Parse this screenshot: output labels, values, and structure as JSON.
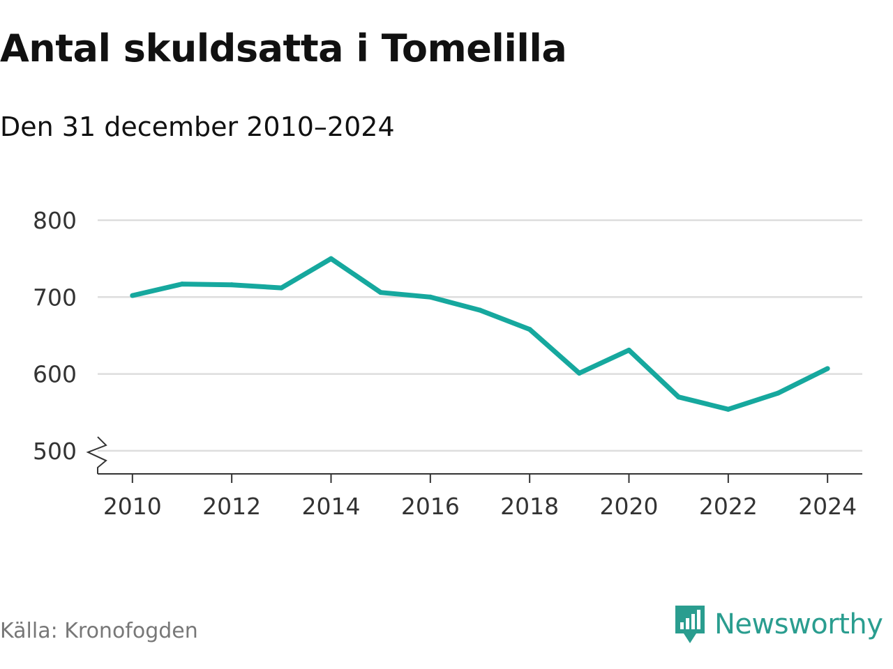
{
  "header": {
    "title": "Antal skuldsatta i Tomelilla",
    "subtitle": "Den 31 december 2010–2024"
  },
  "footer": {
    "source": "Källa: Kronofogden",
    "brand": "Newsworthy"
  },
  "colors": {
    "line": "#16a89e",
    "grid": "#dddddd",
    "axis": "#333333",
    "brand": "#2a9d8f"
  },
  "icons": [
    "newsworthy-logo-icon",
    "axis-break-icon"
  ],
  "chart_data": {
    "type": "line",
    "title": "Antal skuldsatta i Tomelilla",
    "subtitle": "Den 31 december 2010–2024",
    "xlabel": "",
    "ylabel": "",
    "x": [
      2010,
      2011,
      2012,
      2013,
      2014,
      2015,
      2016,
      2017,
      2018,
      2019,
      2020,
      2021,
      2022,
      2023,
      2024
    ],
    "series": [
      {
        "values": [
          702,
          717,
          716,
          712,
          750,
          706,
          700,
          683,
          658,
          601,
          631,
          570,
          554,
          575,
          607
        ]
      }
    ],
    "xlim": [
      2009.3,
      2024.7
    ],
    "ylim": [
      470,
      800
    ],
    "y_axis_break": true,
    "x_ticks": [
      2010,
      2012,
      2014,
      2016,
      2018,
      2020,
      2022,
      2024
    ],
    "x_tick_labels": [
      "2010",
      "2012",
      "2014",
      "2016",
      "2018",
      "2020",
      "2022",
      "2024"
    ],
    "y_ticks": [
      500,
      600,
      700,
      800
    ],
    "y_tick_labels": [
      "500",
      "600",
      "700",
      "800"
    ],
    "grid": "horizontal",
    "legend": "none"
  }
}
